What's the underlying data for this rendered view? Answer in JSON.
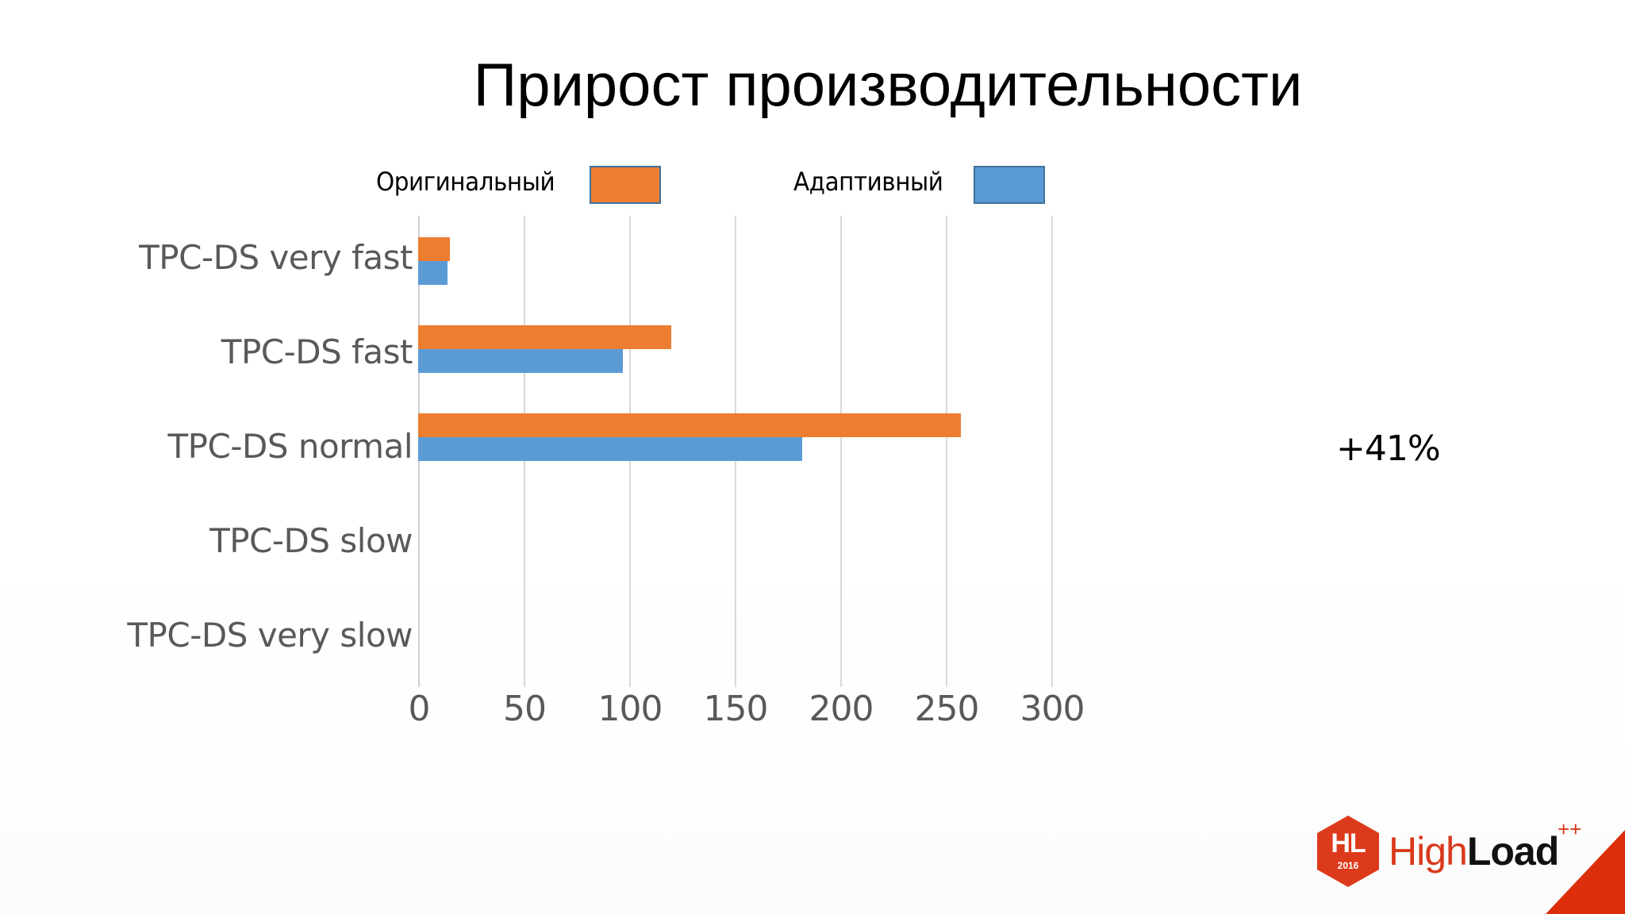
{
  "slide": {
    "title": "Прирост производительности",
    "annotation": "+41%",
    "logo": {
      "badge": "HL",
      "year": "2016",
      "brand_light": "High",
      "brand_bold": "Load",
      "superscript": "++"
    }
  },
  "legend": [
    {
      "label": "Оригинальный",
      "color": "#ed7d31"
    },
    {
      "label": "Адаптивный",
      "color": "#5b9bd5"
    }
  ],
  "colors": {
    "original": "#ed7d31",
    "adaptive": "#5b9bd5",
    "grid": "#d9d9d9",
    "axis_text": "#595959",
    "brand_red": "#dd2e0c"
  },
  "chart_data": {
    "type": "bar",
    "orientation": "horizontal",
    "title": "Прирост производительности",
    "categories": [
      "TPC-DS very fast",
      "TPC-DS fast",
      "TPC-DS normal",
      "TPC-DS slow",
      "TPC-DS very slow"
    ],
    "series": [
      {
        "name": "Оригинальный",
        "color": "#ed7d31",
        "values": [
          15,
          120,
          257,
          null,
          null
        ]
      },
      {
        "name": "Адаптивный",
        "color": "#5b9bd5",
        "values": [
          14,
          97,
          182,
          null,
          null
        ]
      }
    ],
    "xlabel": "",
    "ylabel": "",
    "xlim": [
      0,
      300
    ],
    "xticks": [
      "0",
      "50",
      "100",
      "150",
      "200",
      "250",
      "300"
    ],
    "grid": true,
    "legend_position": "top",
    "annotations": [
      "+41%"
    ]
  }
}
